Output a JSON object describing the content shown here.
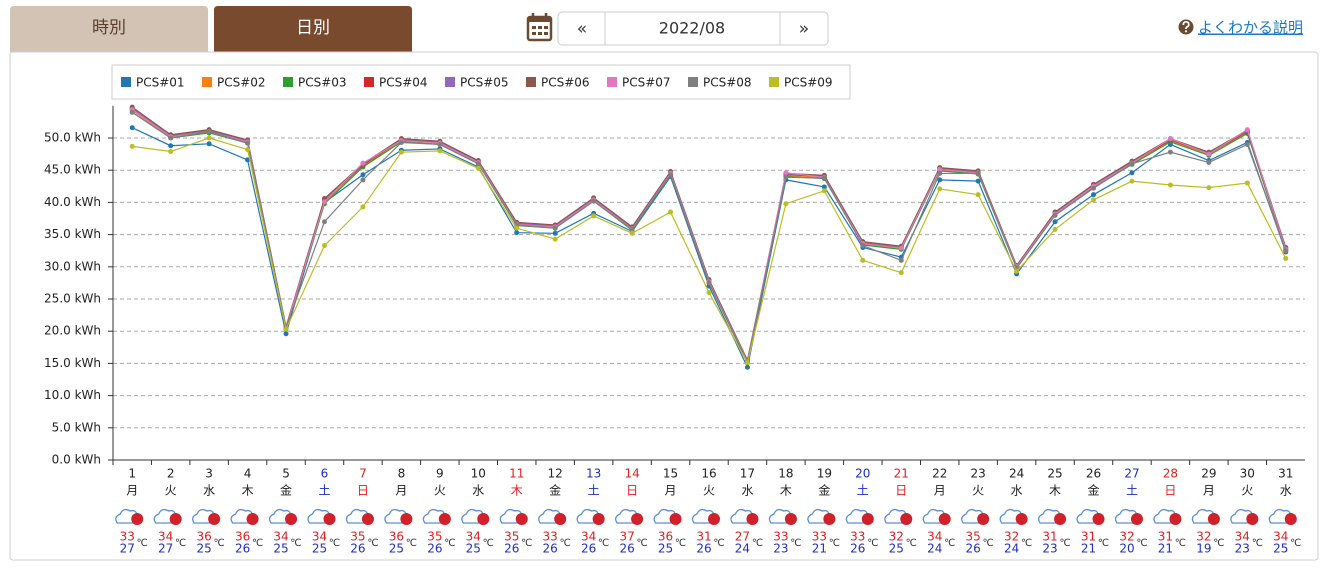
{
  "ui": {
    "tabs": [
      "時別",
      "日別"
    ],
    "prev": "«",
    "month": "2022/08",
    "next": "»",
    "help": "よくわかる説明"
  },
  "chart_data": {
    "type": "line",
    "categories": [
      "1",
      "2",
      "3",
      "4",
      "5",
      "6",
      "7",
      "8",
      "9",
      "10",
      "11",
      "12",
      "13",
      "14",
      "15",
      "16",
      "17",
      "18",
      "19",
      "20",
      "21",
      "22",
      "23",
      "24",
      "25",
      "26",
      "27",
      "28",
      "29",
      "30",
      "31"
    ],
    "weekdays": [
      "月",
      "火",
      "水",
      "木",
      "金",
      "土",
      "日",
      "月",
      "火",
      "水",
      "木",
      "金",
      "土",
      "日",
      "月",
      "火",
      "水",
      "木",
      "金",
      "土",
      "日",
      "月",
      "火",
      "水",
      "木",
      "金",
      "土",
      "日",
      "月",
      "火",
      "水"
    ],
    "day_colors": [
      "#222",
      "#222",
      "#222",
      "#222",
      "#222",
      "#1a2fc0",
      "#e02020",
      "#222",
      "#222",
      "#222",
      "#e02020",
      "#222",
      "#1a2fc0",
      "#e02020",
      "#222",
      "#222",
      "#222",
      "#222",
      "#222",
      "#1a2fc0",
      "#e02020",
      "#222",
      "#222",
      "#222",
      "#222",
      "#222",
      "#1a2fc0",
      "#e02020",
      "#222",
      "#222",
      "#222"
    ],
    "temp_high": [
      33,
      34,
      36,
      36,
      34,
      34,
      35,
      36,
      35,
      34,
      35,
      33,
      34,
      37,
      36,
      31,
      27,
      33,
      33,
      33,
      32,
      34,
      35,
      32,
      31,
      31,
      32,
      31,
      32,
      34,
      34
    ],
    "temp_low": [
      27,
      27,
      25,
      26,
      25,
      25,
      26,
      25,
      26,
      25,
      26,
      26,
      26,
      26,
      25,
      26,
      24,
      23,
      21,
      26,
      25,
      24,
      26,
      24,
      23,
      21,
      20,
      21,
      19,
      23,
      25
    ],
    "temp_unit": "℃",
    "ylim": [
      0,
      55
    ],
    "yticks": [
      {
        "value": 0,
        "label": "0.0 kWh"
      },
      {
        "value": 5,
        "label": "5.0 kWh"
      },
      {
        "value": 10,
        "label": "10.0 kWh"
      },
      {
        "value": 15,
        "label": "15.0 kWh"
      },
      {
        "value": 20,
        "label": "20.0 kWh"
      },
      {
        "value": 25,
        "label": "25.0 kWh"
      },
      {
        "value": 30,
        "label": "30.0 kWh"
      },
      {
        "value": 35,
        "label": "35.0 kWh"
      },
      {
        "value": 40,
        "label": "40.0 kWh"
      },
      {
        "value": 45,
        "label": "45.0 kWh"
      },
      {
        "value": 50,
        "label": "50.0 kWh"
      }
    ],
    "grid": true,
    "series": [
      {
        "name": "PCS#01",
        "color": "#1f77b4",
        "values": [
          51.6,
          48.8,
          49.1,
          46.6,
          19.6,
          40.0,
          44.3,
          48.1,
          48.3,
          45.5,
          35.3,
          35.2,
          38.3,
          35.5,
          44.0,
          27.0,
          14.4,
          43.5,
          42.4,
          33.0,
          31.5,
          43.5,
          43.3,
          28.9,
          37.0,
          41.2,
          44.6,
          49.0,
          46.5,
          49.3,
          32.3
        ]
      },
      {
        "name": "PCS#02",
        "color": "#ff7f0e",
        "values": [
          54.3,
          50.1,
          50.9,
          49.3,
          20.4,
          40.0,
          45.6,
          49.5,
          49.1,
          46.1,
          36.5,
          36.1,
          40.3,
          35.8,
          44.4,
          27.6,
          15.2,
          44.1,
          43.8,
          33.5,
          32.8,
          45.0,
          44.5,
          29.9,
          38.1,
          42.4,
          46.0,
          49.5,
          47.4,
          50.8,
          32.6
        ]
      },
      {
        "name": "PCS#03",
        "color": "#2ca02c",
        "values": [
          54.0,
          50.0,
          50.8,
          49.2,
          20.3,
          39.8,
          45.5,
          49.4,
          49.0,
          46.0,
          36.4,
          36.0,
          40.2,
          35.7,
          44.3,
          27.5,
          15.1,
          44.0,
          43.7,
          33.4,
          32.7,
          44.9,
          44.4,
          29.8,
          38.0,
          42.3,
          45.9,
          49.4,
          47.3,
          50.7,
          32.5
        ]
      },
      {
        "name": "PCS#04",
        "color": "#d62728",
        "values": [
          54.5,
          50.3,
          51.1,
          49.5,
          20.5,
          40.3,
          45.8,
          49.7,
          49.3,
          46.3,
          36.7,
          36.3,
          40.5,
          36.0,
          44.6,
          27.8,
          15.3,
          44.3,
          44.0,
          33.7,
          33.0,
          45.2,
          44.7,
          30.0,
          38.3,
          42.6,
          46.2,
          49.7,
          47.6,
          51.0,
          32.8
        ]
      },
      {
        "name": "PCS#05",
        "color": "#9467bd",
        "values": [
          54.6,
          50.4,
          51.2,
          49.6,
          20.6,
          40.4,
          45.9,
          49.8,
          49.4,
          46.4,
          36.8,
          36.4,
          40.6,
          36.1,
          44.7,
          27.9,
          15.4,
          44.4,
          44.1,
          33.8,
          33.1,
          45.3,
          44.8,
          30.1,
          38.4,
          42.7,
          46.3,
          49.8,
          47.7,
          51.1,
          32.9
        ]
      },
      {
        "name": "PCS#06",
        "color": "#8c564b",
        "values": [
          54.8,
          50.5,
          51.3,
          49.7,
          20.7,
          40.6,
          46.0,
          49.9,
          49.5,
          46.5,
          36.9,
          36.5,
          40.7,
          36.2,
          44.8,
          28.0,
          15.5,
          44.5,
          44.2,
          33.9,
          33.2,
          45.4,
          44.9,
          30.2,
          38.5,
          42.8,
          46.4,
          49.9,
          47.8,
          51.2,
          33.0
        ]
      },
      {
        "name": "PCS#07",
        "color": "#e377c2",
        "values": [
          54.4,
          50.2,
          51.0,
          49.4,
          20.5,
          40.1,
          46.1,
          49.6,
          49.2,
          46.2,
          36.6,
          36.2,
          40.4,
          35.9,
          44.5,
          27.7,
          15.3,
          44.6,
          43.9,
          33.6,
          32.9,
          45.1,
          44.6,
          30.0,
          38.2,
          42.5,
          46.1,
          49.9,
          47.5,
          51.3,
          32.7
        ]
      },
      {
        "name": "PCS#08",
        "color": "#7f7f7f",
        "values": [
          54.0,
          50.0,
          51.0,
          49.2,
          20.6,
          37.0,
          43.5,
          49.3,
          49.0,
          46.0,
          36.5,
          36.0,
          40.2,
          35.8,
          44.3,
          27.5,
          15.2,
          43.9,
          43.8,
          33.3,
          31.0,
          44.5,
          44.5,
          29.8,
          38.0,
          42.2,
          46.0,
          47.8,
          46.2,
          49.0,
          32.5
        ]
      },
      {
        "name": "PCS#09",
        "color": "#bcbd22",
        "values": [
          48.7,
          47.9,
          50.0,
          48.2,
          20.3,
          33.3,
          39.3,
          47.8,
          48.0,
          45.3,
          36.0,
          34.3,
          37.9,
          35.2,
          38.5,
          26.0,
          15.1,
          39.8,
          41.8,
          31.0,
          29.1,
          42.1,
          41.2,
          29.3,
          35.8,
          40.4,
          43.3,
          42.7,
          42.3,
          43.0,
          31.3
        ]
      }
    ]
  }
}
